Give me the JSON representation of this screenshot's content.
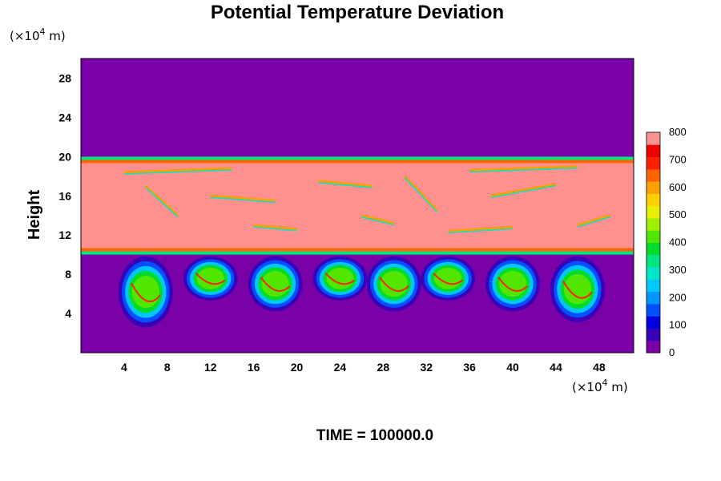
{
  "chart_data": {
    "type": "heatmap",
    "title": "Potential Temperature Deviation",
    "xlabel_unit": "(×10",
    "xlabel_exp": "4",
    "xlabel_tail": " m)",
    "ylabel": "Height",
    "ylabel_unit": "(×10",
    "ylabel_exp": "4",
    "ylabel_tail": " m)",
    "x_ticks": [
      "4",
      "8",
      "12",
      "16",
      "20",
      "24",
      "28",
      "32",
      "36",
      "40",
      "44",
      "48"
    ],
    "x_tick_values": [
      4,
      8,
      12,
      16,
      20,
      24,
      28,
      32,
      36,
      40,
      44,
      48
    ],
    "y_ticks": [
      "4",
      "8",
      "12",
      "16",
      "20",
      "24",
      "28"
    ],
    "y_tick_values": [
      4,
      8,
      12,
      16,
      20,
      24,
      28
    ],
    "xlim": [
      0,
      51.2
    ],
    "ylim": [
      0,
      30
    ],
    "colorbar": {
      "min": 0,
      "max": 800,
      "tick_labels": [
        "0",
        "100",
        "200",
        "300",
        "400",
        "500",
        "600",
        "700",
        "800"
      ],
      "tick_values": [
        0,
        100,
        200,
        300,
        400,
        500,
        600,
        700,
        800
      ],
      "colors": [
        "#7a00a8",
        "#3a00b8",
        "#0000e0",
        "#0050ff",
        "#0096ff",
        "#00c8ff",
        "#00e6c8",
        "#00e680",
        "#00dc28",
        "#50e600",
        "#a0f000",
        "#e6f000",
        "#ffd200",
        "#ffa000",
        "#ff6400",
        "#ff2000",
        "#f00000",
        "#ff9090"
      ]
    },
    "field_description_regions": {
      "background_value": 0,
      "warm_layer_y_range": [
        10.5,
        19.5
      ],
      "warm_layer_value": 800,
      "plume_centers_x": [
        6,
        12,
        18,
        24,
        29,
        34,
        40,
        46
      ],
      "plume_bottom_y": [
        3.5,
        6,
        5,
        6,
        5,
        6,
        5,
        4
      ]
    },
    "footer": "TIME = 100000.0"
  }
}
